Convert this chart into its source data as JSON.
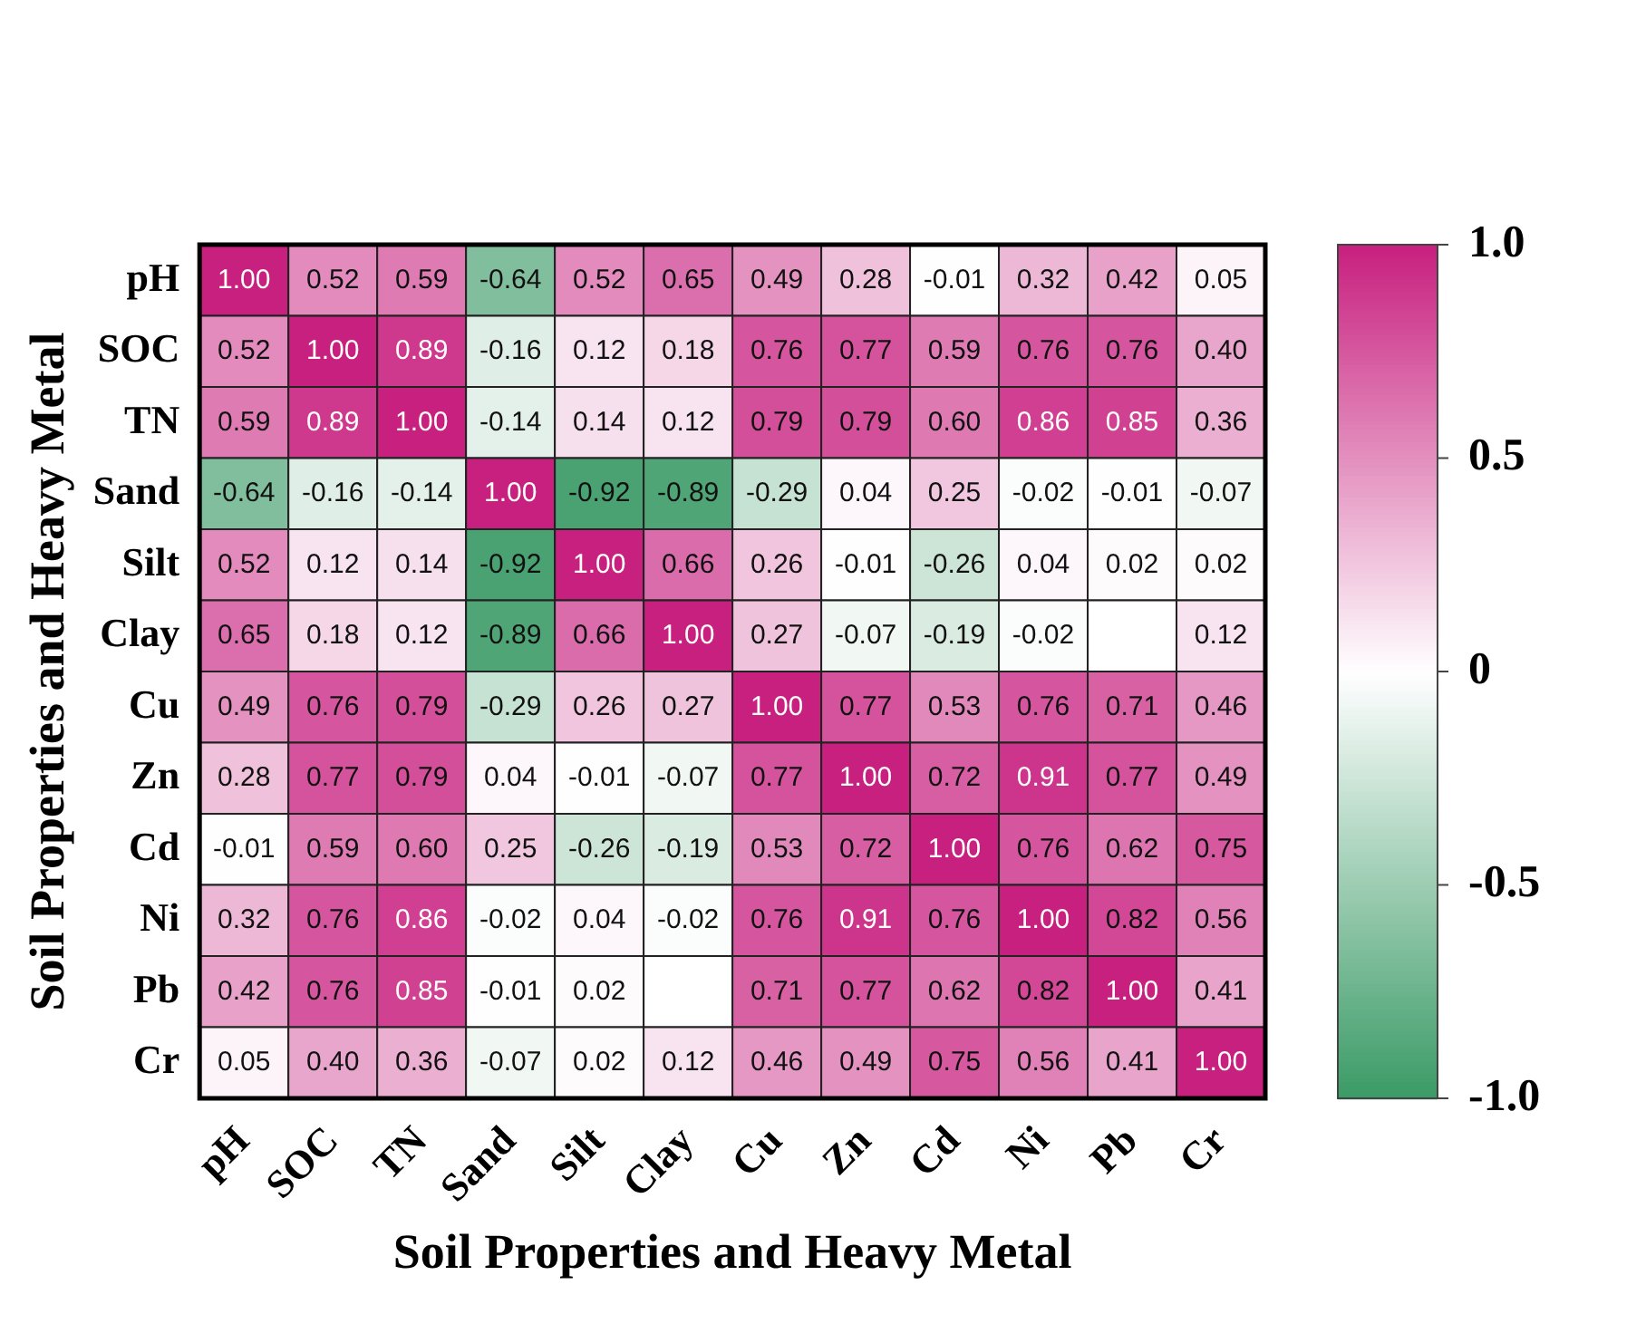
{
  "chart_data": {
    "type": "heatmap",
    "xlabel": "Soil Properties and Heavy Metal",
    "ylabel": "Soil Properties and Heavy Metal",
    "categories": [
      "pH",
      "SOC",
      "TN",
      "Sand",
      "Silt",
      "Clay",
      "Cu",
      "Zn",
      "Cd",
      "Ni",
      "Pb",
      "Cr"
    ],
    "y_categories": [
      "pH",
      "SOC",
      "TN",
      "Sand",
      "Silt",
      "Clay",
      "Cu",
      "Zn",
      "Cd",
      "Ni",
      "Pb",
      "Cr"
    ],
    "cells": [
      [
        1.0,
        0.52,
        0.59,
        -0.64,
        0.52,
        0.65,
        0.49,
        0.28,
        -0.01,
        0.32,
        0.42,
        0.05
      ],
      [
        0.52,
        1.0,
        0.89,
        -0.16,
        0.12,
        0.18,
        0.76,
        0.77,
        0.59,
        0.76,
        0.76,
        0.4
      ],
      [
        0.59,
        0.89,
        1.0,
        -0.14,
        0.14,
        0.12,
        0.79,
        0.79,
        0.6,
        0.86,
        0.85,
        0.36
      ],
      [
        -0.64,
        -0.16,
        -0.14,
        1.0,
        -0.92,
        -0.89,
        -0.29,
        0.04,
        0.25,
        -0.02,
        -0.01,
        -0.07
      ],
      [
        0.52,
        0.12,
        0.14,
        -0.92,
        1.0,
        0.66,
        0.26,
        -0.01,
        -0.26,
        0.04,
        0.02,
        0.02
      ],
      [
        0.65,
        0.18,
        0.12,
        -0.89,
        0.66,
        1.0,
        0.27,
        -0.07,
        -0.19,
        -0.02,
        null,
        0.12
      ],
      [
        0.49,
        0.76,
        0.79,
        -0.29,
        0.26,
        0.27,
        1.0,
        0.77,
        0.53,
        0.76,
        0.71,
        0.46
      ],
      [
        0.28,
        0.77,
        0.79,
        0.04,
        -0.01,
        -0.07,
        0.77,
        1.0,
        0.72,
        0.91,
        0.77,
        0.49
      ],
      [
        -0.01,
        0.59,
        0.6,
        0.25,
        -0.26,
        -0.19,
        0.53,
        0.72,
        1.0,
        0.76,
        0.62,
        0.75
      ],
      [
        0.32,
        0.76,
        0.86,
        -0.02,
        0.04,
        -0.02,
        0.76,
        0.91,
        0.76,
        1.0,
        0.82,
        0.56
      ],
      [
        0.42,
        0.76,
        0.85,
        -0.01,
        0.02,
        null,
        0.71,
        0.77,
        0.62,
        0.82,
        1.0,
        0.41
      ],
      [
        0.05,
        0.4,
        0.36,
        -0.07,
        0.02,
        0.12,
        0.46,
        0.49,
        0.75,
        0.56,
        0.41,
        1.0
      ]
    ],
    "cell_labels": [
      [
        "1.00",
        "0.52",
        "0.59",
        "-0.64",
        "0.52",
        "0.65",
        "0.49",
        "0.28",
        "-0.01",
        "0.32",
        "0.42",
        "0.05"
      ],
      [
        "0.52",
        "1.00",
        "0.89",
        "-0.16",
        "0.12",
        "0.18",
        "0.76",
        "0.77",
        "0.59",
        "0.76",
        "0.76",
        "0.40"
      ],
      [
        "0.59",
        "0.89",
        "1.00",
        "-0.14",
        "0.14",
        "0.12",
        "0.79",
        "0.79",
        "0.60",
        "0.86",
        "0.85",
        "0.36"
      ],
      [
        "-0.64",
        "-0.16",
        "-0.14",
        "1.00",
        "-0.92",
        "-0.89",
        "-0.29",
        "0.04",
        "0.25",
        "-0.02",
        "-0.01",
        "-0.07"
      ],
      [
        "0.52",
        "0.12",
        "0.14",
        "-0.92",
        "1.00",
        "0.66",
        "0.26",
        "-0.01",
        "-0.26",
        "0.04",
        "0.02",
        "0.02"
      ],
      [
        "0.65",
        "0.18",
        "0.12",
        "-0.89",
        "0.66",
        "1.00",
        "0.27",
        "-0.07",
        "-0.19",
        "-0.02",
        null,
        "0.12"
      ],
      [
        "0.49",
        "0.76",
        "0.79",
        "-0.29",
        "0.26",
        "0.27",
        "1.00",
        "0.77",
        "0.53",
        "0.76",
        "0.71",
        "0.46"
      ],
      [
        "0.28",
        "0.77",
        "0.79",
        "0.04",
        "-0.01",
        "-0.07",
        "0.77",
        "1.00",
        "0.72",
        "0.91",
        "0.77",
        "0.49"
      ],
      [
        "-0.01",
        "0.59",
        "0.60",
        "0.25",
        "-0.26",
        "-0.19",
        "0.53",
        "0.72",
        "1.00",
        "0.76",
        "0.62",
        "0.75"
      ],
      [
        "0.32",
        "0.76",
        "0.86",
        "-0.02",
        "0.04",
        "-0.02",
        "0.76",
        "0.91",
        "0.76",
        "1.00",
        "0.82",
        "0.56"
      ],
      [
        "0.42",
        "0.76",
        "0.85",
        "-0.01",
        "0.02",
        null,
        "0.71",
        "0.77",
        "0.62",
        "0.82",
        "1.00",
        "0.41"
      ],
      [
        "0.05",
        "0.40",
        "0.36",
        "-0.07",
        "0.02",
        "0.12",
        "0.46",
        "0.49",
        "0.75",
        "0.56",
        "0.41",
        "1.00"
      ]
    ],
    "colors": [
      "#3a9a66",
      "#ffffff",
      "#c8207f"
    ],
    "clim": [
      -1,
      1
    ],
    "cticks": [
      {
        "value": 1,
        "label": "1.0"
      },
      {
        "value": 0.5,
        "label": "0.5"
      },
      0,
      {
        "value": -0.5,
        "label": "-0.5"
      },
      {
        "value": -1,
        "label": "-1.0"
      }
    ]
  }
}
